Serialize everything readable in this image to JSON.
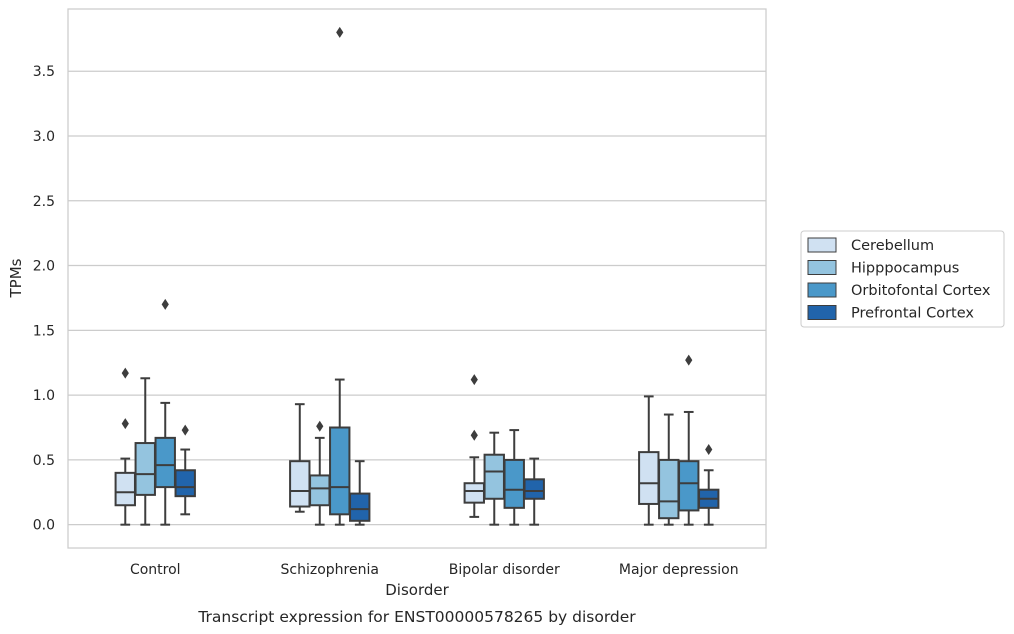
{
  "chart_data": {
    "type": "box",
    "xlabel": "Disorder",
    "ylabel": "TPMs",
    "caption": "Transcript expression for ENST00000578265 by disorder",
    "categories": [
      "Control",
      "Schizophrenia",
      "Bipolar disorder",
      "Major depression"
    ],
    "ylim": [
      -0.18,
      3.98
    ],
    "yticks": [
      "0.0",
      "0.5",
      "1.0",
      "1.5",
      "2.0",
      "2.5",
      "3.0",
      "3.5"
    ],
    "grid": "horizontal",
    "legend_position": "center-right",
    "series": [
      {
        "name": "Cerebellum",
        "color": "#d0e1f2",
        "boxes": [
          {
            "whislo": 0.0,
            "q1": 0.15,
            "med": 0.25,
            "q3": 0.4,
            "whishi": 0.51,
            "fliers": [
              0.78,
              1.17
            ]
          },
          {
            "whislo": 0.1,
            "q1": 0.14,
            "med": 0.26,
            "q3": 0.49,
            "whishi": 0.93,
            "fliers": []
          },
          {
            "whislo": 0.06,
            "q1": 0.17,
            "med": 0.26,
            "q3": 0.32,
            "whishi": 0.52,
            "fliers": [
              0.69,
              1.12
            ]
          },
          {
            "whislo": 0.0,
            "q1": 0.16,
            "med": 0.32,
            "q3": 0.56,
            "whishi": 0.99,
            "fliers": []
          }
        ]
      },
      {
        "name": "Hipppocampus",
        "color": "#94c4df",
        "boxes": [
          {
            "whislo": 0.0,
            "q1": 0.23,
            "med": 0.39,
            "q3": 0.63,
            "whishi": 1.13,
            "fliers": []
          },
          {
            "whislo": 0.0,
            "q1": 0.15,
            "med": 0.28,
            "q3": 0.38,
            "whishi": 0.67,
            "fliers": [
              0.76
            ]
          },
          {
            "whislo": 0.0,
            "q1": 0.2,
            "med": 0.41,
            "q3": 0.54,
            "whishi": 0.71,
            "fliers": []
          },
          {
            "whislo": 0.0,
            "q1": 0.05,
            "med": 0.18,
            "q3": 0.5,
            "whishi": 0.85,
            "fliers": []
          }
        ]
      },
      {
        "name": "Orbitofontal Cortex",
        "color": "#4a98c9",
        "boxes": [
          {
            "whislo": 0.0,
            "q1": 0.29,
            "med": 0.46,
            "q3": 0.67,
            "whishi": 0.94,
            "fliers": [
              1.7
            ]
          },
          {
            "whislo": 0.0,
            "q1": 0.08,
            "med": 0.29,
            "q3": 0.75,
            "whishi": 1.12,
            "fliers": [
              3.8
            ]
          },
          {
            "whislo": 0.0,
            "q1": 0.13,
            "med": 0.27,
            "q3": 0.5,
            "whishi": 0.73,
            "fliers": []
          },
          {
            "whislo": 0.0,
            "q1": 0.11,
            "med": 0.32,
            "q3": 0.49,
            "whishi": 0.87,
            "fliers": [
              1.27
            ]
          }
        ]
      },
      {
        "name": "Prefrontal Cortex",
        "color": "#2164ab",
        "boxes": [
          {
            "whislo": 0.08,
            "q1": 0.22,
            "med": 0.29,
            "q3": 0.42,
            "whishi": 0.58,
            "fliers": [
              0.73
            ]
          },
          {
            "whislo": 0.0,
            "q1": 0.03,
            "med": 0.12,
            "q3": 0.24,
            "whishi": 0.49,
            "fliers": []
          },
          {
            "whislo": 0.0,
            "q1": 0.2,
            "med": 0.26,
            "q3": 0.35,
            "whishi": 0.51,
            "fliers": []
          },
          {
            "whislo": 0.0,
            "q1": 0.13,
            "med": 0.2,
            "q3": 0.27,
            "whishi": 0.42,
            "fliers": [
              0.58
            ]
          }
        ]
      }
    ]
  }
}
